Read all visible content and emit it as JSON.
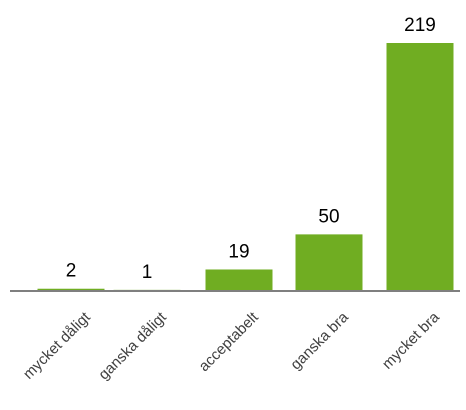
{
  "chart_data": {
    "type": "bar",
    "categories": [
      "mycket dåligt",
      "ganska dåligt",
      "acceptabelt",
      "ganska bra",
      "mycket bra"
    ],
    "values": [
      2,
      1,
      19,
      50,
      219
    ],
    "data_labels": [
      "2",
      "1",
      "19",
      "50",
      "219"
    ],
    "title": "",
    "xlabel": "",
    "ylabel": "",
    "ylim": [
      0,
      219
    ],
    "bar_color": "#70AD22",
    "axis_color": "#7f7f7f",
    "grid": false,
    "legend": "none"
  }
}
